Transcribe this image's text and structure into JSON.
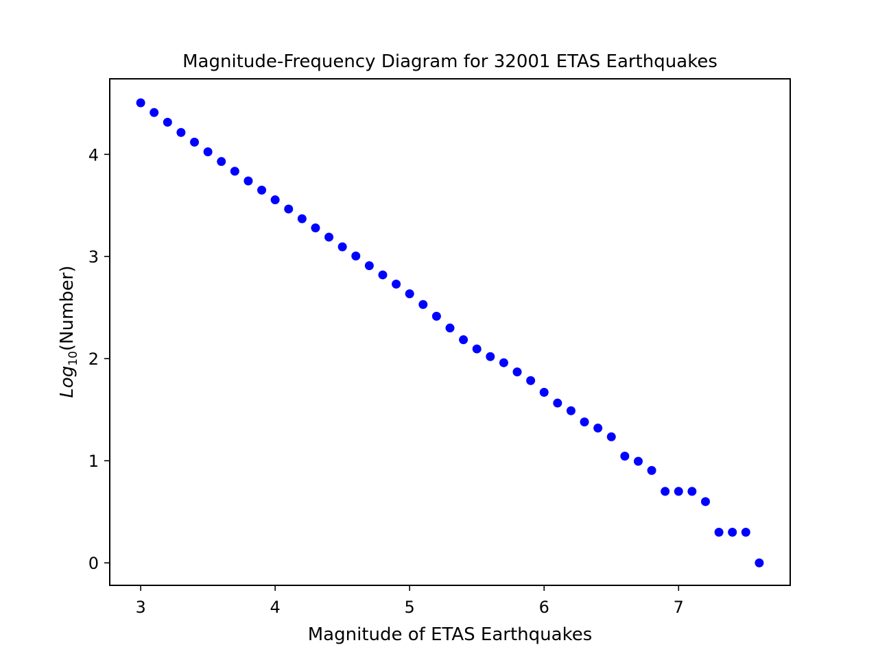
{
  "chart_data": {
    "type": "scatter",
    "title": "Magnitude-Frequency Diagram for 32001 ETAS Earthquakes",
    "xlabel": "Magnitude of ETAS Earthquakes",
    "ylabel": {
      "base": "Log",
      "subscript": "10",
      "rest": "(Number)"
    },
    "xlim": [
      2.77,
      7.83
    ],
    "ylim": [
      -0.22,
      4.74
    ],
    "x_ticks": [
      "3",
      "4",
      "5",
      "6",
      "7"
    ],
    "y_ticks": [
      "0",
      "1",
      "2",
      "3",
      "4"
    ],
    "grid": false,
    "marker_color": "#0000ff",
    "series": [
      {
        "x": [
          3.0,
          3.1,
          3.2,
          3.3,
          3.4,
          3.5,
          3.6,
          3.7,
          3.8,
          3.9,
          4.0,
          4.1,
          4.2,
          4.3,
          4.4,
          4.5,
          4.6,
          4.7,
          4.8,
          4.9,
          5.0,
          5.1,
          5.2,
          5.3,
          5.4,
          5.5,
          5.6,
          5.7,
          5.8,
          5.9,
          6.0,
          6.1,
          6.2,
          6.3,
          6.4,
          6.5,
          6.6,
          6.7,
          6.8,
          6.9,
          7.0,
          7.1,
          7.2,
          7.3,
          7.4,
          7.5,
          7.6
        ],
        "y": [
          4.505,
          4.41,
          4.315,
          4.215,
          4.12,
          4.025,
          3.93,
          3.835,
          3.74,
          3.65,
          3.555,
          3.465,
          3.37,
          3.28,
          3.19,
          3.095,
          3.005,
          2.91,
          2.82,
          2.73,
          2.635,
          2.53,
          2.415,
          2.3,
          2.185,
          2.095,
          2.02,
          1.96,
          1.87,
          1.785,
          1.67,
          1.565,
          1.49,
          1.38,
          1.32,
          1.235,
          1.045,
          0.995,
          0.905,
          0.7,
          0.7,
          0.7,
          0.6,
          0.3,
          0.3,
          0.3,
          0.0
        ]
      }
    ]
  }
}
